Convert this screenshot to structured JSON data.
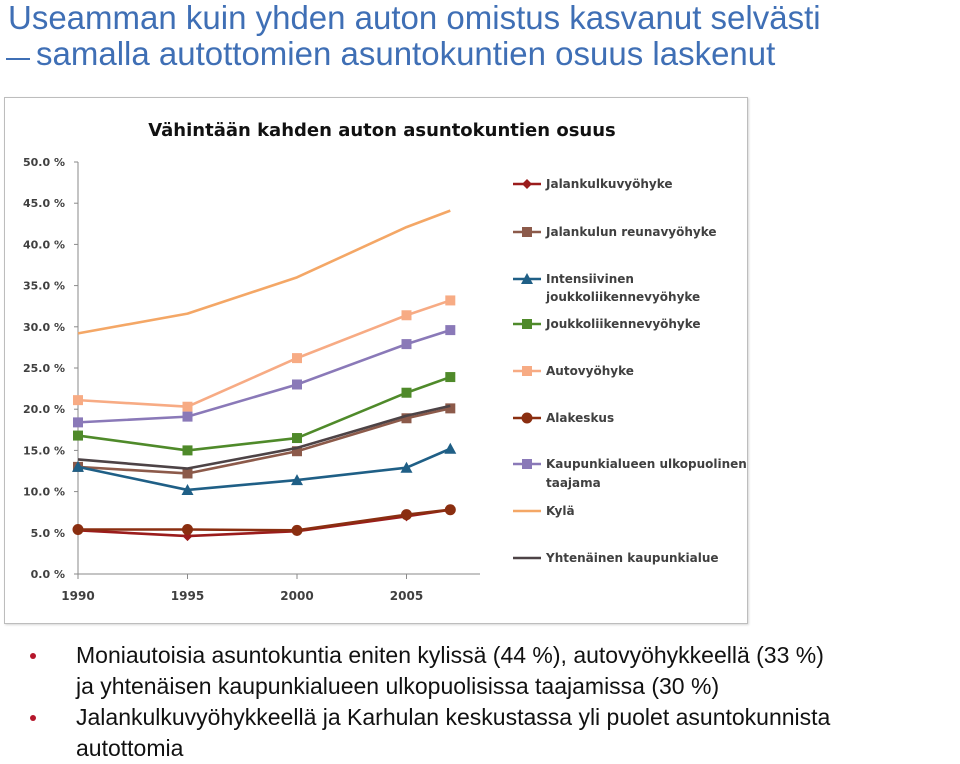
{
  "slide": {
    "title_line1": "Useamman kuin yhden auton omistus kasvanut selvästi",
    "title_line2": "samalla autottomien asuntokuntien osuus laskenut",
    "accent_color": "#3f6fb5",
    "bullet_color": "#b5162b"
  },
  "bullets": [
    {
      "line1": "Moniautoisia asuntokuntia eniten kylissä (44 %), autovyöhykkeellä (33 %)",
      "line2": "ja yhtenäisen kaupunkialueen ulkopuolisissa taajamissa (30 %)"
    },
    {
      "line1": "Jalankulkuvyöhykkeellä ja Karhulan keskustassa yli puolet asuntokunnista",
      "line2": "autottomia"
    }
  ],
  "chart_data": {
    "type": "line",
    "title": "Vähintään kahden auton asuntokuntien osuus",
    "x": [
      1990,
      1995,
      2000,
      2005,
      2007
    ],
    "x_ticks": [
      "1990",
      "1995",
      "2000",
      "2005"
    ],
    "y_ticks": [
      "0.0 %",
      "5.0 %",
      "10.0 %",
      "15.0 %",
      "20.0 %",
      "25.0 %",
      "30.0 %",
      "35.0 %",
      "40.0 %",
      "45.0 %",
      "50.0 %"
    ],
    "ylim": [
      0,
      50
    ],
    "xlabel": "",
    "ylabel": "",
    "legend_position": "right",
    "grid": false,
    "series": [
      {
        "name": "Jalankulkuvyöhyke",
        "color": "#9b1c1c",
        "marker": "diamond",
        "values": [
          5.3,
          4.6,
          5.2,
          7.0,
          7.8
        ]
      },
      {
        "name": "Jalankulun reunavyöhyke",
        "color": "#8c5a4a",
        "marker": "square",
        "values": [
          13.0,
          12.2,
          14.9,
          18.9,
          20.1
        ]
      },
      {
        "name": "Intensiivinen joukkoliikennevyöhyke",
        "color": "#1f5f86",
        "marker": "triangle",
        "values": [
          13.0,
          10.2,
          11.4,
          12.9,
          15.2
        ]
      },
      {
        "name": "Joukkoliikennevyöhyke",
        "color": "#4f8a2a",
        "marker": "square",
        "values": [
          16.8,
          15.0,
          16.5,
          22.0,
          23.9
        ]
      },
      {
        "name": "Autovyöhyke",
        "color": "#f7ab84",
        "marker": "square",
        "values": [
          21.1,
          20.3,
          26.2,
          31.4,
          33.2
        ]
      },
      {
        "name": "Alakeskus",
        "color": "#8a2e10",
        "marker": "circle",
        "values": [
          5.4,
          5.4,
          5.3,
          7.2,
          7.8
        ]
      },
      {
        "name": "Kaupunkialueen ulkopuolinen taajama",
        "color": "#8a79b8",
        "marker": "square",
        "values": [
          18.4,
          19.1,
          23.0,
          27.9,
          29.6
        ]
      },
      {
        "name": "Kylä",
        "color": "#f4a766",
        "marker": "none",
        "values": [
          29.2,
          31.6,
          36.0,
          42.1,
          44.1
        ]
      },
      {
        "name": "Yhtenäinen kaupunkialue",
        "color": "#4d4346",
        "marker": "none",
        "values": [
          13.9,
          12.8,
          15.3,
          19.2,
          20.4
        ]
      }
    ]
  }
}
